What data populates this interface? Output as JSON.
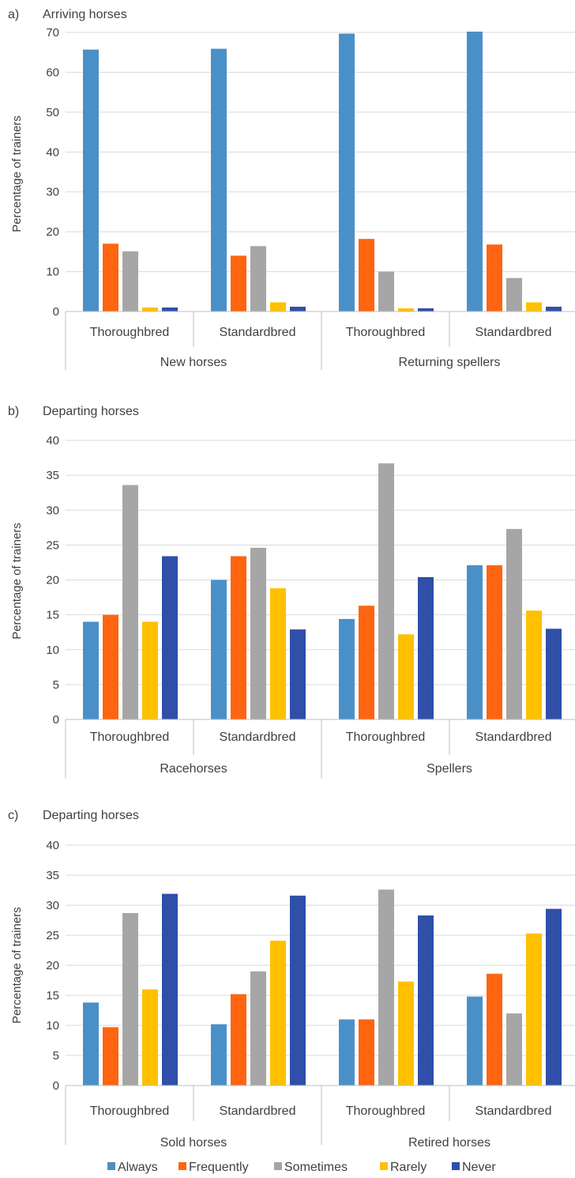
{
  "legend": [
    "Always",
    "Frequently",
    "Sometimes",
    "Rarely",
    "Never"
  ],
  "colors": {
    "Always": "#4a90c8",
    "Frequently": "#ff6410",
    "Sometimes": "#a6a6a6",
    "Rarely": "#ffc000",
    "Never": "#2f4fa8",
    "grid": "#d9d9d9",
    "axis": "#bfbfbf",
    "text": "#404040"
  },
  "chart_data": [
    {
      "type": "bar",
      "panel_label": "a)",
      "title": "Arriving horses",
      "ylabel": "Percentage of trainers",
      "ylim": [
        0,
        70
      ],
      "yticks": [
        0,
        10,
        20,
        30,
        40,
        50,
        60,
        70
      ],
      "grid": true,
      "groups": [
        {
          "name": "New horses",
          "categories": [
            "Thoroughbred",
            "Standardbred"
          ]
        },
        {
          "name": "Returning spellers",
          "categories": [
            "Thoroughbred",
            "Standardbred"
          ]
        }
      ],
      "categories": [
        "Thoroughbred",
        "Standardbred",
        "Thoroughbred",
        "Standardbred"
      ],
      "series": [
        {
          "name": "Always",
          "values": [
            65.7,
            65.9,
            69.7,
            70.2
          ]
        },
        {
          "name": "Frequently",
          "values": [
            17,
            14,
            18.2,
            16.8
          ]
        },
        {
          "name": "Sometimes",
          "values": [
            15.1,
            16.4,
            10,
            8.4
          ]
        },
        {
          "name": "Rarely",
          "values": [
            1,
            2.3,
            0.8,
            2.3
          ]
        },
        {
          "name": "Never",
          "values": [
            1,
            1.2,
            0.8,
            1.2
          ]
        }
      ]
    },
    {
      "type": "bar",
      "panel_label": "b)",
      "title": "Departing horses",
      "ylabel": "Percentage of trainers",
      "ylim": [
        0,
        40
      ],
      "yticks": [
        0,
        5,
        10,
        15,
        20,
        25,
        30,
        35,
        40
      ],
      "grid": true,
      "groups": [
        {
          "name": "Racehorses",
          "categories": [
            "Thoroughbred",
            "Standardbred"
          ]
        },
        {
          "name": "Spellers",
          "categories": [
            "Thoroughbred",
            "Standardbred"
          ]
        }
      ],
      "categories": [
        "Thoroughbred",
        "Standardbred",
        "Thoroughbred",
        "Standardbred"
      ],
      "series": [
        {
          "name": "Always",
          "values": [
            14,
            20,
            14.4,
            22.1
          ]
        },
        {
          "name": "Frequently",
          "values": [
            15,
            23.4,
            16.3,
            22.1
          ]
        },
        {
          "name": "Sometimes",
          "values": [
            33.6,
            24.6,
            36.7,
            27.3
          ]
        },
        {
          "name": "Rarely",
          "values": [
            14,
            18.8,
            12.2,
            15.6
          ]
        },
        {
          "name": "Never",
          "values": [
            23.4,
            12.9,
            20.4,
            13
          ]
        }
      ]
    },
    {
      "type": "bar",
      "panel_label": "c)",
      "title": "Departing horses",
      "ylabel": "Percentage of trainers",
      "ylim": [
        0,
        40
      ],
      "yticks": [
        0,
        5,
        10,
        15,
        20,
        25,
        30,
        35,
        40
      ],
      "grid": true,
      "groups": [
        {
          "name": "Sold horses",
          "categories": [
            "Thoroughbred",
            "Standardbred"
          ]
        },
        {
          "name": "Retired horses",
          "categories": [
            "Thoroughbred",
            "Standardbred"
          ]
        }
      ],
      "categories": [
        "Thoroughbred",
        "Standardbred",
        "Thoroughbred",
        "Standardbred"
      ],
      "series": [
        {
          "name": "Always",
          "values": [
            13.8,
            10.2,
            11,
            14.8
          ]
        },
        {
          "name": "Frequently",
          "values": [
            9.7,
            15.2,
            11,
            18.6
          ]
        },
        {
          "name": "Sometimes",
          "values": [
            28.7,
            19,
            32.6,
            12
          ]
        },
        {
          "name": "Rarely",
          "values": [
            16,
            24.1,
            17.3,
            25.3
          ]
        },
        {
          "name": "Never",
          "values": [
            31.9,
            31.6,
            28.3,
            29.4
          ]
        }
      ]
    }
  ]
}
